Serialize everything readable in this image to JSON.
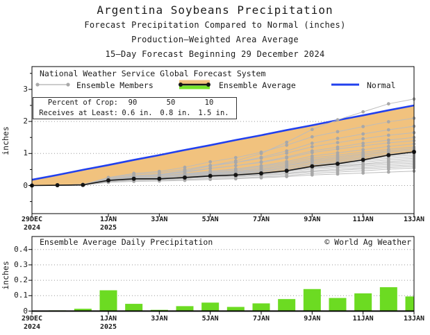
{
  "header": {
    "title": "Argentina Soybeans Precipitation",
    "subtitle1": "Forecast Precipitation Compared to Normal (inches)",
    "subtitle2": "Production—Weighted Area Average",
    "subtitle3": "15—Day Forecast Beginning 29 December 2024"
  },
  "legend": {
    "heading": "National Weather Service Global Forecast System",
    "ensemble_members_label": "Ensemble Members",
    "ensemble_average_label": "Ensemble Average",
    "normal_label": "Normal"
  },
  "crop_table": {
    "rows": [
      {
        "label": "Percent of Crop:",
        "values": [
          "90",
          "50",
          "10"
        ]
      },
      {
        "label": "Receives at Least:",
        "values": [
          "0.6 in.",
          "0.8 in.",
          "1.5 in."
        ]
      }
    ]
  },
  "bottom_panel": {
    "title": "Ensemble Average Daily Precipitation",
    "credit": "© World Ag Weather"
  },
  "colors": {
    "normal_blue": "#2140ee",
    "deficit_orange": "#f1c27e",
    "bar_green": "#6cdb22",
    "legend_green": "#74e52a",
    "member_gray": "#bcbcbc",
    "member_dot_gray": "#a8a8a8",
    "average_black": "#151515",
    "grid_gray": "#999999",
    "frame_black": "#000000"
  },
  "chart_data": [
    {
      "type": "line",
      "title": "15-day cumulative forecast precipitation vs normal (inches)",
      "ylabel": "inches",
      "ylim": [
        -0.9,
        3.7
      ],
      "yticks": [
        0,
        1,
        2,
        3
      ],
      "grid": "dotted horizontal at 0,1,2",
      "legend_position": "top-inside",
      "x_days_span": 15,
      "x_ticks": [
        {
          "day": 0,
          "line1": "29DEC",
          "line2": "2024"
        },
        {
          "day": 3,
          "line1": "1JAN",
          "line2": "2025"
        },
        {
          "day": 5,
          "line1": "3JAN"
        },
        {
          "day": 7,
          "line1": "5JAN"
        },
        {
          "day": 9,
          "line1": "7JAN"
        },
        {
          "day": 11,
          "line1": "9JAN"
        },
        {
          "day": 13,
          "line1": "11JAN"
        },
        {
          "day": 15,
          "line1": "13JAN"
        }
      ],
      "series": [
        {
          "name": "Normal",
          "values": [
            0.18,
            0.33,
            0.49,
            0.64,
            0.8,
            0.95,
            1.11,
            1.26,
            1.42,
            1.57,
            1.73,
            1.88,
            2.04,
            2.19,
            2.35,
            2.5
          ]
        },
        {
          "name": "Ensemble Average",
          "values": [
            0.0,
            0.01,
            0.02,
            0.16,
            0.21,
            0.21,
            0.25,
            0.3,
            0.33,
            0.38,
            0.46,
            0.6,
            0.68,
            0.8,
            0.95,
            1.05
          ]
        }
      ],
      "members": [
        [
          0,
          0,
          0.01,
          0.1,
          0.13,
          0.14,
          0.16,
          0.19,
          0.21,
          0.24,
          0.28,
          0.33,
          0.36,
          0.39,
          0.42,
          0.45
        ],
        [
          0,
          0.01,
          0.02,
          0.12,
          0.16,
          0.17,
          0.19,
          0.22,
          0.24,
          0.27,
          0.31,
          0.38,
          0.42,
          0.46,
          0.51,
          0.55
        ],
        [
          0,
          0,
          0.02,
          0.14,
          0.18,
          0.19,
          0.22,
          0.26,
          0.28,
          0.31,
          0.36,
          0.43,
          0.47,
          0.52,
          0.56,
          0.6
        ],
        [
          0,
          0.01,
          0.03,
          0.16,
          0.2,
          0.21,
          0.24,
          0.28,
          0.3,
          0.34,
          0.39,
          0.46,
          0.51,
          0.56,
          0.61,
          0.65
        ],
        [
          0.01,
          0.01,
          0.02,
          0.15,
          0.2,
          0.22,
          0.25,
          0.3,
          0.33,
          0.37,
          0.43,
          0.51,
          0.56,
          0.61,
          0.66,
          0.7
        ],
        [
          0,
          0.01,
          0.02,
          0.17,
          0.22,
          0.23,
          0.27,
          0.32,
          0.35,
          0.4,
          0.46,
          0.55,
          0.6,
          0.65,
          0.71,
          0.75
        ],
        [
          0,
          0,
          0.01,
          0.13,
          0.18,
          0.2,
          0.24,
          0.3,
          0.34,
          0.39,
          0.46,
          0.56,
          0.62,
          0.68,
          0.75,
          0.8
        ],
        [
          0,
          0.01,
          0.02,
          0.16,
          0.21,
          0.23,
          0.27,
          0.33,
          0.37,
          0.43,
          0.5,
          0.6,
          0.66,
          0.73,
          0.8,
          0.85
        ],
        [
          0,
          0.01,
          0.03,
          0.18,
          0.24,
          0.26,
          0.3,
          0.36,
          0.4,
          0.46,
          0.54,
          0.64,
          0.71,
          0.78,
          0.85,
          0.9
        ],
        [
          0,
          0,
          0.02,
          0.14,
          0.2,
          0.22,
          0.27,
          0.34,
          0.38,
          0.45,
          0.54,
          0.66,
          0.74,
          0.82,
          0.9,
          0.95
        ],
        [
          0,
          0.01,
          0.02,
          0.17,
          0.23,
          0.25,
          0.3,
          0.37,
          0.42,
          0.49,
          0.58,
          0.7,
          0.78,
          0.86,
          0.94,
          1.0
        ],
        [
          0,
          0.01,
          0.03,
          0.19,
          0.26,
          0.28,
          0.33,
          0.4,
          0.45,
          0.52,
          0.62,
          0.74,
          0.82,
          0.9,
          0.98,
          1.05
        ],
        [
          0,
          0,
          0.02,
          0.15,
          0.22,
          0.25,
          0.31,
          0.39,
          0.44,
          0.52,
          0.63,
          0.77,
          0.86,
          0.95,
          1.04,
          1.1
        ],
        [
          0,
          0.01,
          0.02,
          0.18,
          0.25,
          0.28,
          0.34,
          0.42,
          0.48,
          0.56,
          0.67,
          0.81,
          0.9,
          0.99,
          1.08,
          1.15
        ],
        [
          0,
          0.01,
          0.03,
          0.2,
          0.28,
          0.31,
          0.37,
          0.45,
          0.51,
          0.6,
          0.71,
          0.86,
          0.95,
          1.04,
          1.13,
          1.2
        ],
        [
          0,
          0,
          0.02,
          0.16,
          0.24,
          0.28,
          0.35,
          0.45,
          0.52,
          0.62,
          0.75,
          0.92,
          1.02,
          1.12,
          1.22,
          1.3
        ],
        [
          0,
          0.01,
          0.03,
          0.22,
          0.31,
          0.35,
          0.43,
          0.54,
          0.62,
          0.72,
          0.86,
          1.03,
          1.14,
          1.24,
          1.33,
          1.4
        ],
        [
          0,
          0.01,
          0.02,
          0.19,
          0.28,
          0.32,
          0.41,
          0.53,
          0.62,
          0.74,
          0.89,
          1.08,
          1.2,
          1.32,
          1.42,
          1.5
        ],
        [
          0,
          0.01,
          0.03,
          0.24,
          0.35,
          0.4,
          0.5,
          0.63,
          0.72,
          0.85,
          1.01,
          1.21,
          1.34,
          1.46,
          1.57,
          1.65
        ],
        [
          0,
          0.01,
          0.02,
          0.2,
          0.3,
          0.35,
          0.46,
          0.61,
          0.72,
          0.88,
          1.08,
          1.32,
          1.47,
          1.61,
          1.74,
          1.85
        ],
        [
          0,
          0.01,
          0.03,
          0.25,
          0.38,
          0.44,
          0.57,
          0.74,
          0.87,
          1.04,
          1.26,
          1.52,
          1.68,
          1.84,
          1.99,
          2.1
        ],
        [
          0,
          0.01,
          0.02,
          0.18,
          0.28,
          0.33,
          0.45,
          0.62,
          0.77,
          1.0,
          1.35,
          1.75,
          2.05,
          2.3,
          2.55,
          2.7
        ]
      ]
    },
    {
      "type": "bar",
      "title": "Ensemble Average Daily Precipitation",
      "ylabel": "inches",
      "ylim": [
        0,
        0.48
      ],
      "yticks": [
        0,
        0.1,
        0.2,
        0.3,
        0.4
      ],
      "grid": "dotted horizontal at 0.1-0.4",
      "values": [
        0.003,
        0.005,
        0.015,
        0.135,
        0.047,
        0.008,
        0.032,
        0.055,
        0.027,
        0.05,
        0.078,
        0.143,
        0.085,
        0.115,
        0.155,
        0.095
      ]
    }
  ]
}
